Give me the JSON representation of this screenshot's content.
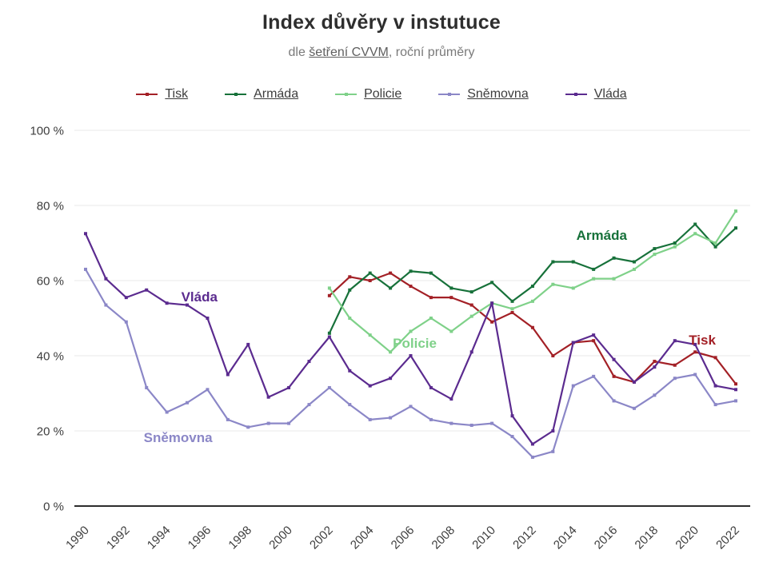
{
  "chart_data": {
    "type": "line",
    "title": "Index důvěry v instutuce",
    "subtitle_prefix": "dle ",
    "subtitle_link": "šetření CVVM",
    "subtitle_suffix": ", roční průměry",
    "ylabel": "",
    "xlabel": "",
    "ylim": [
      0,
      100
    ],
    "grid": true,
    "legend_position": "top",
    "yticks": [
      0,
      20,
      40,
      60,
      80,
      100
    ],
    "ytick_labels": [
      "0 %",
      "20 %",
      "40 %",
      "60 %",
      "80 %",
      "100 %"
    ],
    "xticks": [
      1990,
      1992,
      1994,
      1996,
      1998,
      2000,
      2002,
      2004,
      2006,
      2008,
      2010,
      2012,
      2014,
      2016,
      2018,
      2020,
      2022
    ],
    "x_range": [
      1990,
      2022
    ],
    "series": [
      {
        "name": "Tisk",
        "color": "#a32026",
        "start_year": 2002,
        "values": [
          56,
          61,
          60,
          62,
          58.5,
          55.5,
          55.5,
          53.5,
          49,
          51.5,
          47.5,
          40,
          43.5,
          44,
          34.5,
          33,
          38.5,
          37.5,
          41,
          39.5,
          32.5
        ]
      },
      {
        "name": "Armáda",
        "color": "#17713a",
        "start_year": 2002,
        "values": [
          46,
          57.5,
          62,
          58,
          62.5,
          62,
          58,
          57,
          59.5,
          54.5,
          58.5,
          65,
          65,
          63,
          66,
          65,
          68.5,
          70,
          75,
          69,
          74
        ]
      },
      {
        "name": "Policie",
        "color": "#7fd189",
        "start_year": 2002,
        "values": [
          58,
          50,
          45.5,
          41,
          46.5,
          50,
          46.5,
          50.5,
          54,
          52.5,
          54.5,
          59,
          58,
          60.5,
          60.5,
          63,
          67,
          69,
          72.5,
          70,
          78.5
        ]
      },
      {
        "name": "Sněmovna",
        "color": "#8b87c7",
        "start_year": 1990,
        "values": [
          63,
          53.5,
          49,
          31.5,
          25,
          27.5,
          31,
          23,
          21,
          22,
          22,
          27,
          31.5,
          27,
          23,
          23.5,
          26.5,
          23,
          22,
          21.5,
          22,
          18.5,
          13,
          14.5,
          32,
          34.5,
          28,
          26,
          29.5,
          34,
          35,
          27,
          28
        ]
      },
      {
        "name": "Vláda",
        "color": "#5b2b8f",
        "start_year": 1990,
        "values": [
          72.5,
          60.5,
          55.5,
          57.5,
          54,
          53.5,
          50,
          35,
          43,
          29,
          31.5,
          38.5,
          45,
          36,
          32,
          34,
          40,
          31.5,
          28.5,
          41,
          54,
          24,
          16.5,
          20,
          43.5,
          45.5,
          39,
          33,
          37,
          44,
          43,
          32,
          31
        ]
      }
    ],
    "annotations": [
      {
        "text": "Vláda",
        "year": 1995.6,
        "value": 55.5,
        "color": "#5b2b8f"
      },
      {
        "text": "Sněmovna",
        "year": 1994.55,
        "value": 18,
        "color": "#8b87c7"
      },
      {
        "text": "Policie",
        "year": 2006.2,
        "value": 43.2,
        "color": "#7fd189"
      },
      {
        "text": "Armáda",
        "year": 2015.4,
        "value": 72,
        "color": "#17713a"
      },
      {
        "text": "Tisk",
        "year": 2020.35,
        "value": 44,
        "color": "#a32026"
      }
    ]
  }
}
